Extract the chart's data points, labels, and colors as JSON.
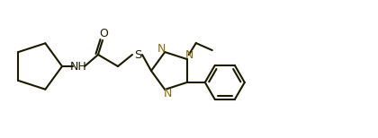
{
  "background": "#ffffff",
  "line_color": "#1a1a00",
  "N_color": "#8B6914",
  "lw": 1.5,
  "figsize": [
    4.2,
    1.54
  ],
  "dpi": 100,
  "xlim": [
    0,
    420
  ],
  "ylim": [
    0,
    154
  ]
}
